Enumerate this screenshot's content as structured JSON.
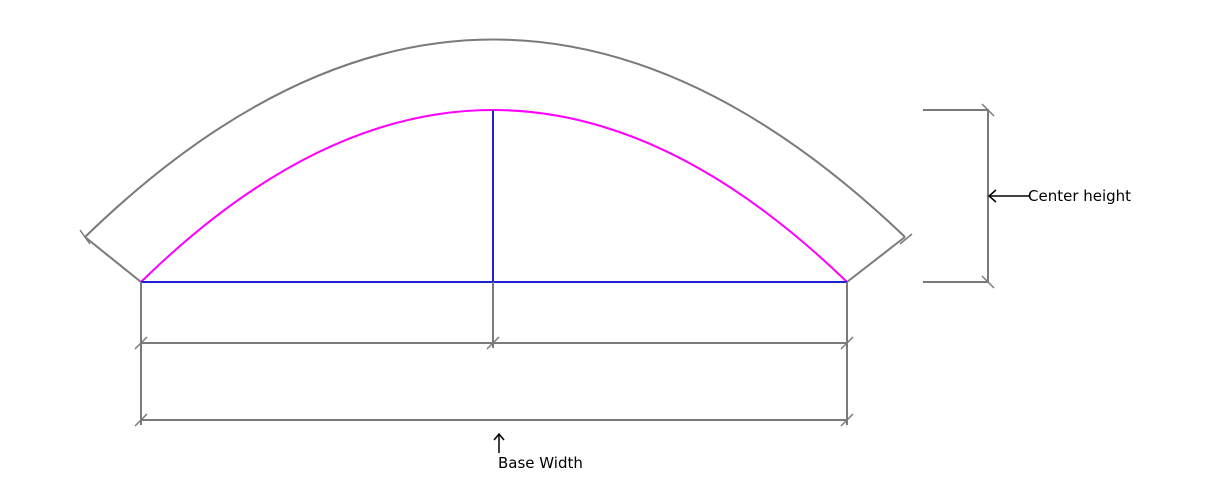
{
  "labels": {
    "center_height": "Center height",
    "base_width": "Base Width"
  },
  "colors": {
    "dimension_line": "#7a7a7a",
    "arc_inner": "#ff00ff",
    "base_and_center": "#1f1fd6",
    "pointer": "#000000",
    "background": "#ffffff"
  }
}
